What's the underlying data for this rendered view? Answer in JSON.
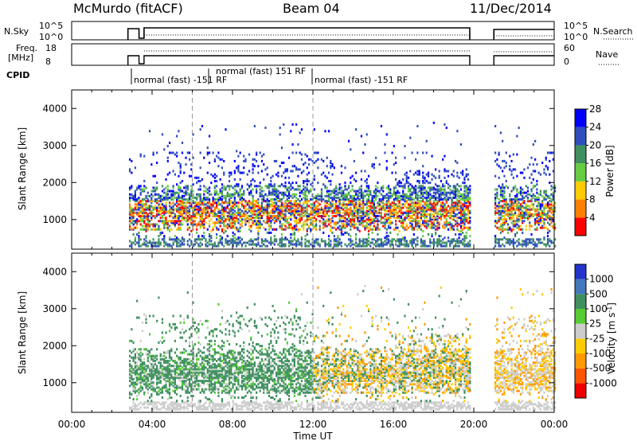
{
  "header": {
    "left": "McMurdo (fitACF)",
    "center": "Beam 04",
    "right": "11/Dec/2014"
  },
  "strips": {
    "nsky_label": "N.Sky",
    "nsky_ticks": [
      "10^5",
      "10^0"
    ],
    "nsearch_label": "N.Search",
    "nsearch_ticks": [
      "10^5",
      "10^0"
    ],
    "freq_label": "Freq.",
    "freq_unit": "[MHz]",
    "freq_ticks": [
      "18",
      "8"
    ],
    "nave_label": "Nave",
    "nave_ticks": [
      "60",
      "0"
    ],
    "cpid_label": "CPID",
    "cpid_segments": [
      "normal (fast) -151 RF",
      "normal (fast) 151 RF",
      "normal (fast) -151 RF"
    ]
  },
  "x_axis": {
    "label": "Time UT",
    "ticks": [
      "00:00",
      "04:00",
      "08:00",
      "12:00",
      "16:00",
      "20:00",
      "00:00"
    ]
  },
  "chart_data": [
    {
      "type": "heatmap",
      "panel": "power",
      "ylabel": "Slant Range [km]",
      "yticks": [
        "1000",
        "2000",
        "3000",
        "4000"
      ],
      "ylim": [
        200,
        4500
      ],
      "xlim_hours": [
        0,
        24
      ],
      "colorbar_label": "Power [dB]",
      "colorbar_ticks": [
        "4",
        "8",
        "12",
        "16",
        "20",
        "24",
        "28"
      ],
      "colorbar_colors": [
        "#0000ff",
        "#2f4fbf",
        "#3f8f5f",
        "#66cc44",
        "#ffcc00",
        "#ff7f00",
        "#ff0000"
      ],
      "data_gaps_hours": [
        [
          0,
          2.8
        ],
        [
          19.8,
          21.0
        ]
      ]
    },
    {
      "type": "heatmap",
      "panel": "velocity",
      "ylabel": "Slant Range [km]",
      "yticks": [
        "1000",
        "2000",
        "3000",
        "4000"
      ],
      "ylim": [
        200,
        4500
      ],
      "xlim_hours": [
        0,
        24
      ],
      "colorbar_label": "Velocity [m s",
      "colorbar_label_sup": "-1",
      "colorbar_label_end": "]",
      "colorbar_ticks": [
        "1000",
        "500",
        "100",
        "25",
        "-25",
        "-100",
        "-500",
        "-1000"
      ],
      "colorbar_colors": [
        "#2233cc",
        "#4477bb",
        "#3f8f5f",
        "#55cc33",
        "#cccccc",
        "#ffcc00",
        "#ff9900",
        "#ff5500",
        "#ee0000"
      ],
      "data_gaps_hours": [
        [
          0,
          2.8
        ],
        [
          19.8,
          21.0
        ]
      ]
    }
  ]
}
